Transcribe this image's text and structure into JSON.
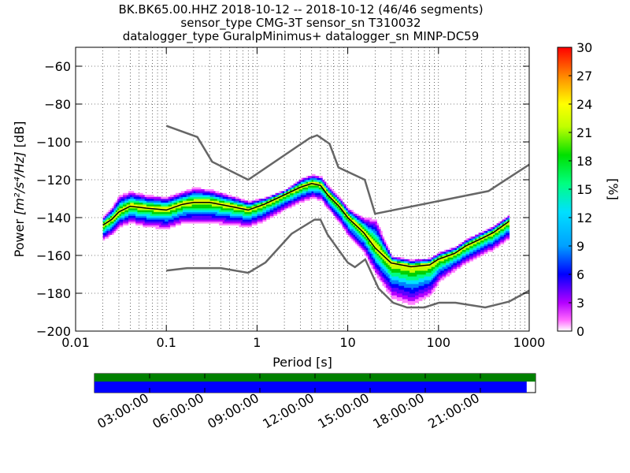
{
  "title_lines": [
    "BK.BK65.00.HHZ   2018-10-12 -- 2018-10-12  (46/46 segments)",
    "sensor_type CMG-3T sensor_sn T310032",
    "datalogger_type GuralpMinimus+ datalogger_sn MINP-DC59"
  ],
  "chart_data": {
    "type": "heatmap",
    "xlabel": "Period [s]",
    "ylabel_text": "Power ",
    "ylabel_units": "[m²/s⁴/Hz]",
    "ylabel_suffix": " [dB]",
    "x_scale": "log",
    "xlim": [
      0.01,
      1000
    ],
    "ylim": [
      -200,
      -50
    ],
    "x_ticks": [
      0.01,
      0.1,
      1,
      10,
      100,
      1000
    ],
    "x_tick_labels": [
      "0.01",
      "0.1",
      "1",
      "10",
      "100",
      "1000"
    ],
    "y_ticks": [
      -200,
      -180,
      -160,
      -140,
      -120,
      -100,
      -80,
      -60
    ],
    "y_tick_labels": [
      "−200",
      "−180",
      "−160",
      "−140",
      "−120",
      "−100",
      "−80",
      "−60"
    ],
    "grid": "dotted",
    "colorbar": {
      "label": "[%]",
      "range": [
        0,
        30
      ],
      "ticks": [
        "0",
        "3",
        "6",
        "9",
        "12",
        "15",
        "18",
        "21",
        "24",
        "27",
        "30"
      ]
    },
    "nhnm_model": {
      "periods": [
        0.1,
        0.22,
        0.32,
        0.8,
        3.8,
        4.6,
        6.3,
        7.9,
        15.4,
        20,
        354.8,
        1000
      ],
      "db": [
        -91.5,
        -97.4,
        -110.5,
        -120,
        -98,
        -96.5,
        -101,
        -113.5,
        -120,
        -138,
        -126,
        -112
      ]
    },
    "nlnm_model": {
      "periods": [
        0.1,
        0.17,
        0.4,
        0.8,
        1.24,
        2.4,
        4.3,
        5,
        6,
        10,
        12,
        15.6,
        21.9,
        31.6,
        45,
        70,
        101,
        154,
        328,
        600,
        1000
      ],
      "db": [
        -168,
        -166.7,
        -166.7,
        -169.2,
        -163.7,
        -148.6,
        -141.1,
        -141.1,
        -149,
        -163.8,
        -166.2,
        -162.1,
        -177.5,
        -185,
        -187.5,
        -187.5,
        -185,
        -185,
        -187.5,
        -184.4,
        -178.6
      ]
    },
    "mode_curve": {
      "periods": [
        0.02,
        0.025,
        0.03,
        0.04,
        0.06,
        0.1,
        0.15,
        0.2,
        0.3,
        0.5,
        0.8,
        1.2,
        2,
        3,
        4,
        5,
        6,
        8,
        10,
        15,
        20,
        30,
        50,
        80,
        100,
        150,
        200,
        300,
        400,
        600
      ],
      "db": [
        -144,
        -141,
        -137,
        -134,
        -135,
        -136,
        -133,
        -132,
        -132,
        -134,
        -136,
        -133,
        -128,
        -124,
        -122,
        -123,
        -128,
        -134,
        -140,
        -148,
        -156,
        -164,
        -166,
        -165,
        -162,
        -159,
        -155,
        -151,
        -148,
        -142
      ]
    },
    "spread_upper": [
      -4,
      -6,
      -8,
      -7,
      -6,
      -6,
      -6,
      -7,
      -6,
      -5,
      -4,
      -3,
      -2,
      -4,
      -4,
      -4,
      -4,
      -4,
      -4,
      -7,
      -14,
      -3,
      -3,
      -3,
      -3,
      -3,
      -3,
      -3,
      -3,
      -3
    ],
    "spread_lower": [
      2,
      2,
      2,
      3,
      4,
      4,
      4,
      5,
      5,
      4,
      3,
      3,
      2,
      2,
      2,
      2,
      2,
      3,
      4,
      5,
      8,
      12,
      14,
      10,
      6,
      3,
      3,
      3,
      3,
      3
    ]
  },
  "timeline": {
    "tick_labels": [
      "03:00:00",
      "06:00:00",
      "09:00:00",
      "12:00:00",
      "15:00:00",
      "18:00:00",
      "21:00:00"
    ],
    "data_fraction": 0.98,
    "data_color": "#0000ff",
    "segment_color": "#008000"
  }
}
